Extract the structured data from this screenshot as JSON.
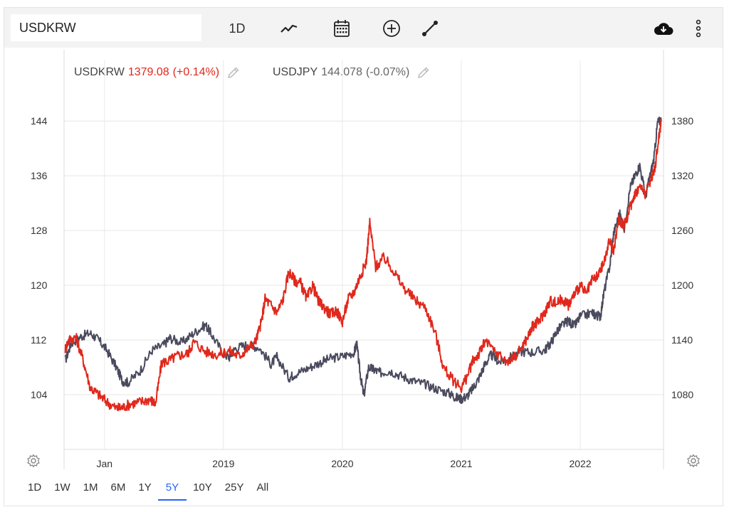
{
  "toolbar": {
    "symbol_value": "USDKRW",
    "interval_label": "1D",
    "icons": [
      "line-chart-icon",
      "calendar-icon",
      "plus-circle-icon",
      "draw-line-icon",
      "cloud-download-icon",
      "more-vertical-icon"
    ]
  },
  "legend": {
    "krw": {
      "symbol": "USDKRW",
      "value": "1379.08",
      "change": "(+0.14%)",
      "color": "#e0281c"
    },
    "jpy": {
      "symbol": "USDJPY",
      "value": "144.078",
      "change": "(-0.07%)",
      "color": "#4a4a5e"
    }
  },
  "range_buttons": [
    "1D",
    "1W",
    "1M",
    "6M",
    "1Y",
    "5Y",
    "10Y",
    "25Y",
    "All"
  ],
  "active_range": "5Y",
  "chart_data": {
    "type": "line",
    "title": "",
    "x_tick_labels": [
      "Jan",
      "2019",
      "2020",
      "2021",
      "2022"
    ],
    "x_ticks": [
      2018.0,
      2019.0,
      2020.0,
      2021.0,
      2022.0
    ],
    "x_range": [
      2017.66,
      2022.7
    ],
    "left_axis": {
      "series": "USDJPY",
      "ticks": [
        144,
        136,
        128,
        120,
        112,
        104
      ],
      "range": [
        96,
        148.7
      ]
    },
    "right_axis": {
      "series": "USDKRW",
      "ticks": [
        1380,
        1320,
        1260,
        1200,
        1140,
        1080
      ],
      "range": [
        1020,
        1415
      ]
    },
    "series": [
      {
        "name": "USDJPY",
        "axis": "left",
        "color": "#4a4a5e",
        "x": [
          2017.67,
          2017.72,
          2017.8,
          2017.88,
          2017.95,
          2018.02,
          2018.1,
          2018.15,
          2018.2,
          2018.3,
          2018.4,
          2018.5,
          2018.55,
          2018.65,
          2018.75,
          2018.85,
          2018.9,
          2019.0,
          2019.05,
          2019.1,
          2019.2,
          2019.3,
          2019.4,
          2019.45,
          2019.55,
          2019.6,
          2019.7,
          2019.8,
          2019.9,
          2020.0,
          2020.1,
          2020.12,
          2020.15,
          2020.18,
          2020.22,
          2020.27,
          2020.32,
          2020.4,
          2020.5,
          2020.6,
          2020.7,
          2020.8,
          2020.9,
          2020.95,
          2021.0,
          2021.05,
          2021.1,
          2021.15,
          2021.2,
          2021.25,
          2021.32,
          2021.4,
          2021.5,
          2021.6,
          2021.7,
          2021.75,
          2021.8,
          2021.85,
          2021.9,
          2021.95,
          2022.0,
          2022.1,
          2022.13,
          2022.17,
          2022.2,
          2022.25,
          2022.28,
          2022.33,
          2022.37,
          2022.42,
          2022.46,
          2022.5,
          2022.55,
          2022.58,
          2022.62,
          2022.65,
          2022.68
        ],
        "values": [
          109,
          111.5,
          112.5,
          113,
          112,
          110.5,
          108,
          106,
          105.8,
          107.5,
          110.5,
          111.3,
          112.3,
          111.6,
          113,
          114.2,
          112.8,
          110,
          109.5,
          110.8,
          111.3,
          110.9,
          108.5,
          109.5,
          106.5,
          107,
          107.8,
          108.6,
          109.3,
          109.6,
          110.2,
          111.5,
          107,
          103.8,
          108,
          107.6,
          107.2,
          107.5,
          106.7,
          106,
          105.5,
          104.8,
          104.2,
          103.6,
          103.4,
          103.8,
          105,
          106.5,
          108.5,
          109.8,
          108.8,
          109.3,
          110.3,
          110.2,
          110.5,
          111.5,
          113.2,
          114.2,
          114.8,
          114,
          115.4,
          116,
          115.6,
          115.5,
          119,
          123,
          127.5,
          130.5,
          128.3,
          134.3,
          136,
          137.5,
          133,
          135.5,
          138.5,
          143.8,
          144.1
        ]
      },
      {
        "name": "USDKRW",
        "axis": "right",
        "color": "#e0281c",
        "x": [
          2017.67,
          2017.7,
          2017.76,
          2017.82,
          2017.88,
          2017.95,
          2018.02,
          2018.1,
          2018.15,
          2018.22,
          2018.3,
          2018.38,
          2018.43,
          2018.48,
          2018.55,
          2018.62,
          2018.7,
          2018.75,
          2018.85,
          2018.95,
          2019.05,
          2019.13,
          2019.2,
          2019.27,
          2019.32,
          2019.35,
          2019.4,
          2019.45,
          2019.5,
          2019.55,
          2019.6,
          2019.65,
          2019.7,
          2019.75,
          2019.8,
          2019.85,
          2019.9,
          2019.95,
          2020.0,
          2020.05,
          2020.1,
          2020.15,
          2020.2,
          2020.23,
          2020.28,
          2020.35,
          2020.42,
          2020.5,
          2020.6,
          2020.7,
          2020.78,
          2020.85,
          2020.92,
          2021.0,
          2021.05,
          2021.1,
          2021.15,
          2021.2,
          2021.3,
          2021.4,
          2021.5,
          2021.55,
          2021.6,
          2021.65,
          2021.7,
          2021.75,
          2021.8,
          2021.85,
          2021.9,
          2021.95,
          2022.0,
          2022.05,
          2022.1,
          2022.15,
          2022.2,
          2022.25,
          2022.28,
          2022.32,
          2022.37,
          2022.42,
          2022.45,
          2022.5,
          2022.55,
          2022.6,
          2022.63,
          2022.66,
          2022.68
        ],
        "values": [
          1130,
          1140,
          1143,
          1118,
          1088,
          1080,
          1072,
          1065,
          1066,
          1070,
          1072,
          1075,
          1070,
          1115,
          1118,
          1123,
          1125,
          1138,
          1127,
          1124,
          1128,
          1122,
          1130,
          1138,
          1160,
          1185,
          1178,
          1170,
          1184,
          1215,
          1205,
          1202,
          1185,
          1200,
          1182,
          1175,
          1168,
          1172,
          1160,
          1185,
          1193,
          1210,
          1225,
          1268,
          1220,
          1230,
          1218,
          1200,
          1185,
          1175,
          1148,
          1110,
          1097,
          1088,
          1100,
          1118,
          1125,
          1138,
          1125,
          1115,
          1130,
          1141,
          1155,
          1160,
          1170,
          1183,
          1180,
          1185,
          1178,
          1190,
          1200,
          1190,
          1205,
          1210,
          1225,
          1250,
          1235,
          1272,
          1265,
          1285,
          1298,
          1308,
          1300,
          1318,
          1330,
          1362,
          1379
        ]
      }
    ]
  }
}
